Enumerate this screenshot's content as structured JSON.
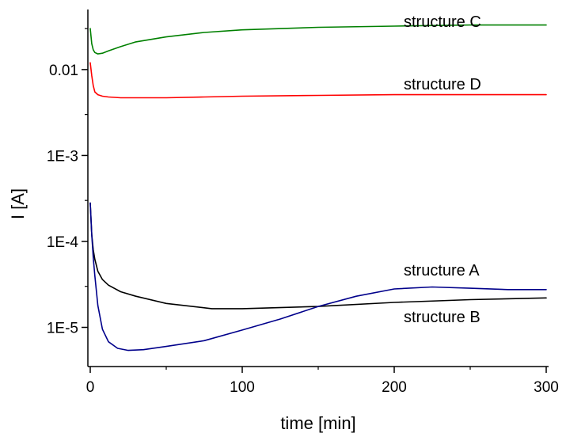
{
  "chart_data": {
    "type": "line",
    "title": "",
    "xlabel": "time [min]",
    "ylabel": "I [A]",
    "xlim": [
      0,
      300
    ],
    "ylim": [
      3.5e-06,
      0.05
    ],
    "yscale": "log",
    "grid": false,
    "x_ticks": [
      {
        "value": 0,
        "label": "0"
      },
      {
        "value": 100,
        "label": "100"
      },
      {
        "value": 200,
        "label": "200"
      },
      {
        "value": 300,
        "label": "300"
      }
    ],
    "y_ticks": [
      {
        "value": 0.01,
        "label": "0.01"
      },
      {
        "value": 0.001,
        "label": "1E-3"
      },
      {
        "value": 0.0001,
        "label": "1E-4"
      },
      {
        "value": 1e-05,
        "label": "1E-5"
      }
    ],
    "series": [
      {
        "name": "structure C",
        "color": "#008000",
        "x": [
          0,
          1,
          2,
          3,
          5,
          8,
          12,
          20,
          30,
          50,
          75,
          100,
          150,
          200,
          250,
          300
        ],
        "y": [
          0.03,
          0.02,
          0.017,
          0.0158,
          0.0152,
          0.0155,
          0.0165,
          0.0185,
          0.021,
          0.024,
          0.027,
          0.029,
          0.031,
          0.032,
          0.033,
          0.033
        ]
      },
      {
        "name": "structure D",
        "color": "#ff0000",
        "x": [
          0,
          1,
          2,
          3,
          5,
          8,
          12,
          20,
          30,
          50,
          75,
          100,
          150,
          200,
          250,
          300
        ],
        "y": [
          0.012,
          0.0085,
          0.0065,
          0.0055,
          0.0051,
          0.0049,
          0.0048,
          0.0047,
          0.0047,
          0.0047,
          0.0048,
          0.0049,
          0.005,
          0.0051,
          0.0051,
          0.0051
        ]
      },
      {
        "name": "structure A",
        "color": "#000000",
        "x": [
          0,
          1,
          2,
          3,
          5,
          8,
          12,
          20,
          30,
          50,
          80,
          100,
          150,
          200,
          250,
          300
        ],
        "y": [
          0.00028,
          0.00012,
          8e-05,
          6.2e-05,
          4.5e-05,
          3.6e-05,
          3.1e-05,
          2.6e-05,
          2.3e-05,
          1.9e-05,
          1.65e-05,
          1.65e-05,
          1.75e-05,
          1.95e-05,
          2.1e-05,
          2.2e-05
        ]
      },
      {
        "name": "structure B",
        "color": "#00008b",
        "x": [
          0,
          1,
          2,
          3,
          5,
          8,
          12,
          18,
          25,
          35,
          50,
          75,
          100,
          125,
          150,
          175,
          200,
          225,
          250,
          275,
          300
        ],
        "y": [
          0.00028,
          0.00012,
          6.5e-05,
          4e-05,
          1.8e-05,
          9.5e-06,
          6.8e-06,
          5.7e-06,
          5.4e-06,
          5.5e-06,
          6e-06,
          7e-06,
          9.3e-06,
          1.25e-05,
          1.75e-05,
          2.3e-05,
          2.8e-05,
          2.95e-05,
          2.85e-05,
          2.75e-05,
          2.75e-05
        ]
      }
    ],
    "annotations": [
      "structure C",
      "structure D",
      "structure A",
      "structure B"
    ]
  }
}
